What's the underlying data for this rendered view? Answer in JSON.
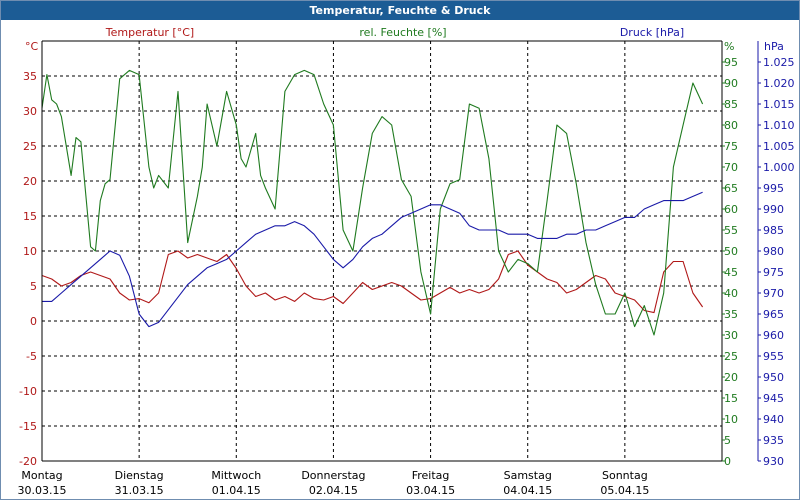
{
  "window": {
    "title": "Temperatur, Feuchte & Druck"
  },
  "chart_data": {
    "type": "line",
    "title": "Temperatur, Feuchte & Druck",
    "colors": {
      "temperature": "#b01818",
      "humidity": "#1f7a1f",
      "pressure": "#1a1aa8",
      "grid": "#000000",
      "title_bg": "#1c5c95"
    },
    "x_range": [
      "2015-03-30 00:00",
      "2015-04-06 00:00"
    ],
    "x_ticks": [
      {
        "day": "Montag",
        "date": "30.03.15"
      },
      {
        "day": "Dienstag",
        "date": "31.03.15"
      },
      {
        "day": "Mittwoch",
        "date": "01.04.15"
      },
      {
        "day": "Donnerstag",
        "date": "02.04.15"
      },
      {
        "day": "Freitag",
        "date": "03.04.15"
      },
      {
        "day": "Samstag",
        "date": "04.04.15"
      },
      {
        "day": "Sonntag",
        "date": "05.04.15"
      }
    ],
    "grid": true,
    "axes": {
      "left": {
        "label": "Temperatur [°C]",
        "unit": "°C",
        "min": -20,
        "max": 40,
        "ticks": [
          "35",
          "30",
          "25",
          "20",
          "15",
          "10",
          "5",
          "0",
          "-5",
          "-10",
          "-15",
          "-20"
        ]
      },
      "right1": {
        "label": "rel. Feuchte [%]",
        "unit": "%",
        "min": 0,
        "max": 100,
        "ticks": [
          "95",
          "90",
          "85",
          "80",
          "75",
          "70",
          "65",
          "60",
          "55",
          "50",
          "45",
          "40",
          "35",
          "30",
          "25",
          "20",
          "15",
          "10",
          "5",
          "0"
        ]
      },
      "right2": {
        "label": "Druck [hPa]",
        "unit": "hPa",
        "min": 930,
        "max": 1030,
        "ticks": [
          "1.025",
          "1.020",
          "1.015",
          "1.010",
          "1.005",
          "1.000",
          "995",
          "990",
          "985",
          "980",
          "975",
          "970",
          "965",
          "960",
          "955",
          "950",
          "945",
          "940",
          "935",
          "930"
        ]
      }
    },
    "series": [
      {
        "name": "Temperatur [°C]",
        "axis": "left",
        "x": [
          0,
          0.1,
          0.2,
          0.3,
          0.4,
          0.5,
          0.6,
          0.7,
          0.8,
          0.9,
          1.0,
          1.1,
          1.2,
          1.3,
          1.4,
          1.5,
          1.6,
          1.7,
          1.8,
          1.9,
          2.0,
          2.1,
          2.2,
          2.3,
          2.4,
          2.5,
          2.6,
          2.7,
          2.8,
          2.9,
          3.0,
          3.1,
          3.2,
          3.3,
          3.4,
          3.5,
          3.6,
          3.7,
          3.8,
          3.9,
          4.0,
          4.1,
          4.2,
          4.3,
          4.4,
          4.5,
          4.6,
          4.7,
          4.8,
          4.9,
          5.0,
          5.1,
          5.2,
          5.3,
          5.4,
          5.5,
          5.6,
          5.7,
          5.8,
          5.9,
          6.0,
          6.1,
          6.2,
          6.3,
          6.4,
          6.5,
          6.6,
          6.7,
          6.8
        ],
        "y": [
          6.5,
          6,
          5,
          5.5,
          6.5,
          7,
          6.5,
          6,
          4,
          3,
          3.2,
          2.6,
          4,
          9.5,
          10,
          9,
          9.5,
          9,
          8.5,
          9.5,
          7.5,
          5,
          3.5,
          4,
          3,
          3.5,
          2.8,
          4,
          3.2,
          3,
          3.5,
          2.5,
          4,
          5.5,
          4.5,
          5,
          5.5,
          5,
          4,
          3,
          3.2,
          4,
          4.8,
          4,
          4.5,
          4,
          4.5,
          6,
          9.5,
          10,
          8,
          7,
          6,
          5.5,
          4,
          4.5,
          5.5,
          6.5,
          6,
          4,
          3.5,
          3,
          1.5,
          1.2,
          7,
          8.5,
          8.5,
          4,
          2
        ]
      },
      {
        "name": "rel. Feuchte [%]",
        "axis": "right1",
        "x": [
          0,
          0.05,
          0.1,
          0.15,
          0.2,
          0.3,
          0.35,
          0.4,
          0.5,
          0.55,
          0.6,
          0.65,
          0.7,
          0.8,
          0.9,
          1.0,
          1.1,
          1.15,
          1.2,
          1.3,
          1.4,
          1.5,
          1.6,
          1.65,
          1.7,
          1.8,
          1.9,
          2.0,
          2.05,
          2.1,
          2.2,
          2.25,
          2.3,
          2.4,
          2.5,
          2.6,
          2.7,
          2.8,
          2.9,
          3.0,
          3.1,
          3.2,
          3.3,
          3.4,
          3.5,
          3.6,
          3.7,
          3.8,
          3.9,
          4.0,
          4.1,
          4.2,
          4.3,
          4.4,
          4.5,
          4.6,
          4.7,
          4.8,
          4.9,
          5.0,
          5.1,
          5.2,
          5.3,
          5.4,
          5.5,
          5.6,
          5.7,
          5.8,
          5.9,
          6.0,
          6.1,
          6.2,
          6.3,
          6.4,
          6.5,
          6.6,
          6.7,
          6.8
        ],
        "y": [
          84,
          92,
          86,
          85,
          82,
          68,
          77,
          76,
          51,
          50,
          62,
          66,
          67,
          91,
          93,
          92,
          70,
          65,
          68,
          65,
          88,
          52,
          63,
          70,
          85,
          75,
          88,
          80,
          72,
          70,
          78,
          68,
          65,
          60,
          88,
          92,
          93,
          92,
          85,
          80,
          55,
          50,
          65,
          78,
          82,
          80,
          67,
          63,
          45,
          35,
          60,
          66,
          67,
          85,
          84,
          72,
          50,
          45,
          48,
          47,
          45,
          62,
          80,
          78,
          66,
          52,
          42,
          35,
          35,
          40,
          32,
          37,
          30,
          40,
          70,
          80,
          90,
          85
        ]
      },
      {
        "name": "Druck [hPa]",
        "axis": "right2",
        "x": [
          0,
          0.1,
          0.2,
          0.3,
          0.4,
          0.5,
          0.6,
          0.7,
          0.8,
          0.9,
          1.0,
          1.1,
          1.2,
          1.3,
          1.4,
          1.5,
          1.6,
          1.7,
          1.8,
          1.9,
          2.0,
          2.1,
          2.2,
          2.3,
          2.4,
          2.5,
          2.6,
          2.7,
          2.8,
          2.9,
          3.0,
          3.1,
          3.2,
          3.3,
          3.4,
          3.5,
          3.6,
          3.7,
          3.8,
          3.9,
          4.0,
          4.1,
          4.2,
          4.3,
          4.4,
          4.5,
          4.6,
          4.7,
          4.8,
          4.9,
          5.0,
          5.1,
          5.2,
          5.3,
          5.4,
          5.5,
          5.6,
          5.7,
          5.8,
          5.9,
          6.0,
          6.1,
          6.2,
          6.3,
          6.4,
          6.5,
          6.6,
          6.7,
          6.8
        ],
        "y": [
          968,
          968,
          970,
          972,
          974,
          976,
          978,
          980,
          979,
          974,
          965,
          962,
          963,
          966,
          969,
          972,
          974,
          976,
          977,
          978,
          980,
          982,
          984,
          985,
          986,
          986,
          987,
          986,
          984,
          981,
          978,
          976,
          978,
          981,
          983,
          984,
          986,
          988,
          989,
          990,
          991,
          991,
          990,
          989,
          986,
          985,
          985,
          985,
          984,
          984,
          984,
          983,
          983,
          983,
          984,
          984,
          985,
          985,
          986,
          987,
          988,
          988,
          990,
          991,
          992,
          992,
          992,
          993,
          994
        ]
      }
    ]
  }
}
